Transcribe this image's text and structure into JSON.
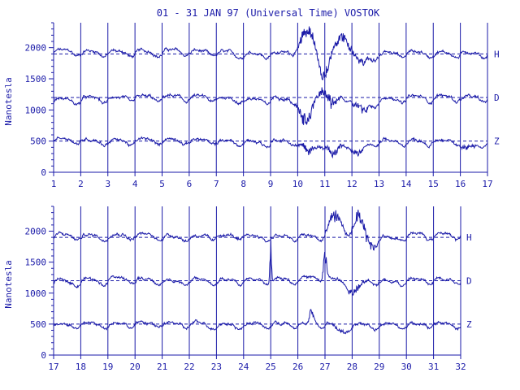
{
  "chart_data": {
    "type": "line",
    "title": "01 - 31 JAN 97 (Universal Time) VOSTOK",
    "ylabel": "Nanotesla",
    "unit": "nT",
    "colors": {
      "ink": "#1a1aa8",
      "background": "#ffffff"
    },
    "grid": "vertical lines at day boundaries",
    "panels": [
      {
        "x_range": [
          1,
          17
        ],
        "x_ticks": [
          "1",
          "2",
          "3",
          "4",
          "5",
          "6",
          "7",
          "8",
          "9",
          "10",
          "11",
          "12",
          "13",
          "14",
          "15",
          "16",
          "17"
        ],
        "ylim": [
          0,
          2400
        ],
        "y_ticks": [
          "0",
          "500",
          "1000",
          "1500",
          "2000"
        ],
        "series": [
          {
            "name": "H",
            "baseline": 1900,
            "daily": [
              1930,
              1920,
              1915,
              1920,
              1935,
              1920,
              1900,
              1890,
              1900,
              1890,
              1910,
              1880,
              1900,
              1910,
              1900,
              1900
            ],
            "events": [
              [
                10.35,
                350,
                0.35
              ],
              [
                11.0,
                -330,
                0.25
              ],
              [
                11.7,
                260,
                0.4
              ],
              [
                12.3,
                -150,
                0.4
              ]
            ]
          },
          {
            "name": "D",
            "baseline": 1200,
            "daily": [
              1150,
              1170,
              1180,
              1190,
              1200,
              1190,
              1170,
              1150,
              1180,
              1200,
              1190,
              1150,
              1170,
              1190,
              1200,
              1180
            ],
            "events": [
              [
                10.3,
                -400,
                0.3
              ],
              [
                11.0,
                250,
                0.3
              ],
              [
                11.2,
                -250,
                0.25
              ],
              [
                12.4,
                -200,
                0.35
              ]
            ]
          },
          {
            "name": "Z",
            "baseline": 500,
            "daily": [
              520,
              500,
              490,
              500,
              510,
              500,
              480,
              470,
              490,
              490,
              500,
              470,
              480,
              490,
              480,
              470
            ],
            "events": [
              [
                10.4,
                -170,
                0.3
              ],
              [
                11.3,
                -200,
                0.3
              ],
              [
                12.2,
                -200,
                0.3
              ],
              [
                16.3,
                -120,
                0.3
              ]
            ]
          }
        ]
      },
      {
        "x_range": [
          17,
          32
        ],
        "x_ticks": [
          "17",
          "18",
          "19",
          "20",
          "21",
          "22",
          "23",
          "24",
          "25",
          "26",
          "27",
          "28",
          "29",
          "30",
          "31",
          "32"
        ],
        "ylim": [
          0,
          2400
        ],
        "y_ticks": [
          "0",
          "500",
          "1000",
          "1500",
          "2000"
        ],
        "series": [
          {
            "name": "H",
            "baseline": 1900,
            "daily": [
              1920,
              1910,
              1930,
              1920,
              1900,
              1900,
              1910,
              1900,
              1900,
              1900,
              1920,
              1900,
              1880,
              1920,
              1930
            ],
            "events": [
              [
                27.4,
                300,
                0.3
              ],
              [
                28.3,
                350,
                0.3
              ],
              [
                28.6,
                -200,
                0.3
              ]
            ]
          },
          {
            "name": "D",
            "baseline": 1200,
            "daily": [
              1180,
              1200,
              1220,
              1200,
              1180,
              1190,
              1190,
              1200,
              1220,
              1230,
              1200,
              1210,
              1180,
              1200,
              1220
            ],
            "events": [
              [
                25.0,
                500,
                0.04
              ],
              [
                27.0,
                450,
                0.08
              ],
              [
                28.1,
                -200,
                0.3
              ]
            ]
          },
          {
            "name": "Z",
            "baseline": 500,
            "daily": [
              480,
              490,
              500,
              500,
              490,
              490,
              480,
              490,
              490,
              490,
              500,
              490,
              480,
              490,
              490
            ],
            "events": [
              [
                26.5,
                200,
                0.1
              ],
              [
                27.6,
                -100,
                0.3
              ]
            ]
          }
        ]
      }
    ]
  }
}
